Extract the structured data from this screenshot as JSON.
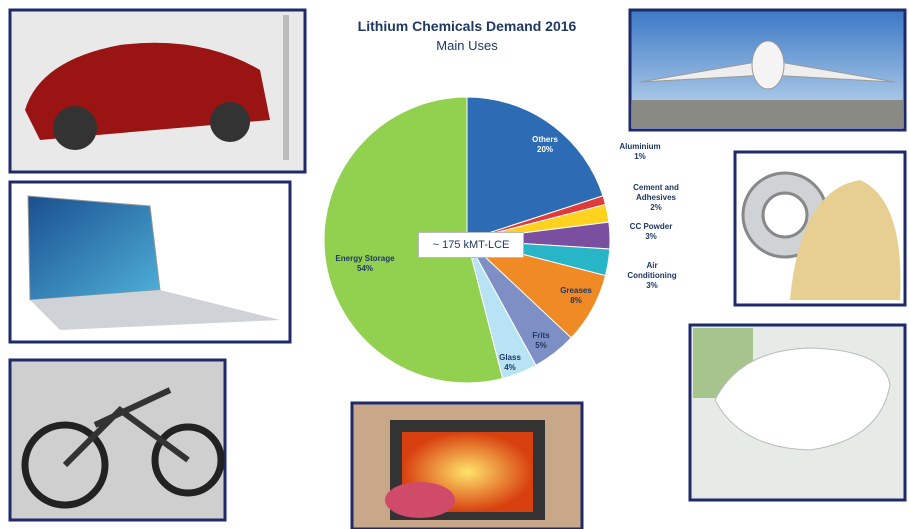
{
  "chart_data": {
    "type": "pie",
    "title": "Lithium Chemicals Demand 2016",
    "subtitle": "Main Uses",
    "center_label": "~ 175 kMT-LCE",
    "categories": [
      "Others",
      "Aluminium",
      "Cement and Adhesives",
      "CC Powder",
      "Air Conditioning",
      "Greases",
      "Frits",
      "Glass",
      "Energy Storage"
    ],
    "values": [
      20,
      1,
      2,
      3,
      3,
      8,
      5,
      4,
      54
    ],
    "value_labels": [
      "20%",
      "1%",
      "2%",
      "3%",
      "3%",
      "8%",
      "5%",
      "4%",
      "54%"
    ],
    "colors": [
      "#2e6bb5",
      "#e03a3a",
      "#ffd21f",
      "#7a4fa0",
      "#28b5c8",
      "#f08a24",
      "#7d8fc4",
      "#b7e3f4",
      "#92d050"
    ]
  }
}
